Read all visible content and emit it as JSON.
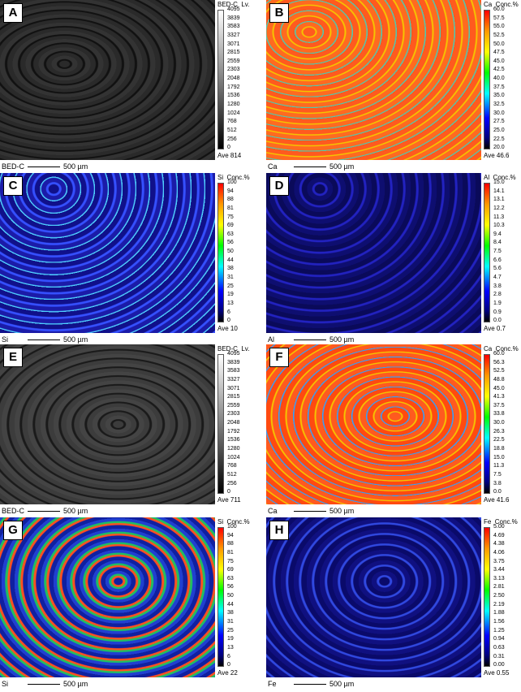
{
  "panels": [
    {
      "label": "A",
      "header": "BED-C  Lv.",
      "ticks": [
        "4095",
        "3839",
        "3583",
        "3327",
        "3071",
        "2815",
        "2559",
        "2303",
        "2048",
        "1792",
        "1536",
        "1280",
        "1024",
        "768",
        "512",
        "256",
        "0"
      ],
      "average": "Ave 814",
      "element": "BED-C",
      "scale": "500 µm"
    },
    {
      "label": "B",
      "header": "Ca  Conc.%",
      "ticks": [
        "60.0",
        "57.5",
        "55.0",
        "52.5",
        "50.0",
        "47.5",
        "45.0",
        "42.5",
        "40.0",
        "37.5",
        "35.0",
        "32.5",
        "30.0",
        "27.5",
        "25.0",
        "22.5",
        "20.0"
      ],
      "average": "Ave 46.6",
      "element": "Ca",
      "scale": "500 µm"
    },
    {
      "label": "C",
      "header": "Si  Conc.%",
      "ticks": [
        "100",
        "94",
        "88",
        "81",
        "75",
        "69",
        "63",
        "56",
        "50",
        "44",
        "38",
        "31",
        "25",
        "19",
        "13",
        "6",
        "0"
      ],
      "average": "Ave 10",
      "element": "Si",
      "scale": "500 µm"
    },
    {
      "label": "D",
      "header": "Al  Conc.%",
      "ticks": [
        "15.0",
        "14.1",
        "13.1",
        "12.2",
        "11.3",
        "10.3",
        "9.4",
        "8.4",
        "7.5",
        "6.6",
        "5.6",
        "4.7",
        "3.8",
        "2.8",
        "1.9",
        "0.9",
        "0.0"
      ],
      "average": "Ave 0.7",
      "element": "Al",
      "scale": "500 µm"
    },
    {
      "label": "E",
      "header": "BED-C  Lv.",
      "ticks": [
        "4095",
        "3839",
        "3583",
        "3327",
        "3071",
        "2815",
        "2559",
        "2303",
        "2048",
        "1792",
        "1536",
        "1280",
        "1024",
        "768",
        "512",
        "256",
        "0"
      ],
      "average": "Ave 711",
      "element": "BED-C",
      "scale": "500 µm"
    },
    {
      "label": "F",
      "header": "Ca  Conc.%",
      "ticks": [
        "60.0",
        "56.3",
        "52.5",
        "48.8",
        "45.0",
        "41.3",
        "37.5",
        "33.8",
        "30.0",
        "26.3",
        "22.5",
        "18.8",
        "15.0",
        "11.3",
        "7.5",
        "3.8",
        "0.0"
      ],
      "average": "Ave 41.6",
      "element": "Ca",
      "scale": "500 µm"
    },
    {
      "label": "G",
      "header": "Si  Conc.%",
      "ticks": [
        "100",
        "94",
        "88",
        "81",
        "75",
        "69",
        "63",
        "56",
        "50",
        "44",
        "38",
        "31",
        "25",
        "19",
        "13",
        "6",
        "0"
      ],
      "average": "Ave 22",
      "element": "Si",
      "scale": "500 µm"
    },
    {
      "label": "H",
      "header": "Fe  Conc.%",
      "ticks": [
        "5.00",
        "4.69",
        "4.38",
        "4.06",
        "3.75",
        "3.44",
        "3.13",
        "2.81",
        "2.50",
        "2.19",
        "1.88",
        "1.56",
        "1.25",
        "0.94",
        "0.63",
        "0.31",
        "0.00"
      ],
      "average": "Ave 0.55",
      "element": "Fe",
      "scale": "500 µm"
    }
  ]
}
